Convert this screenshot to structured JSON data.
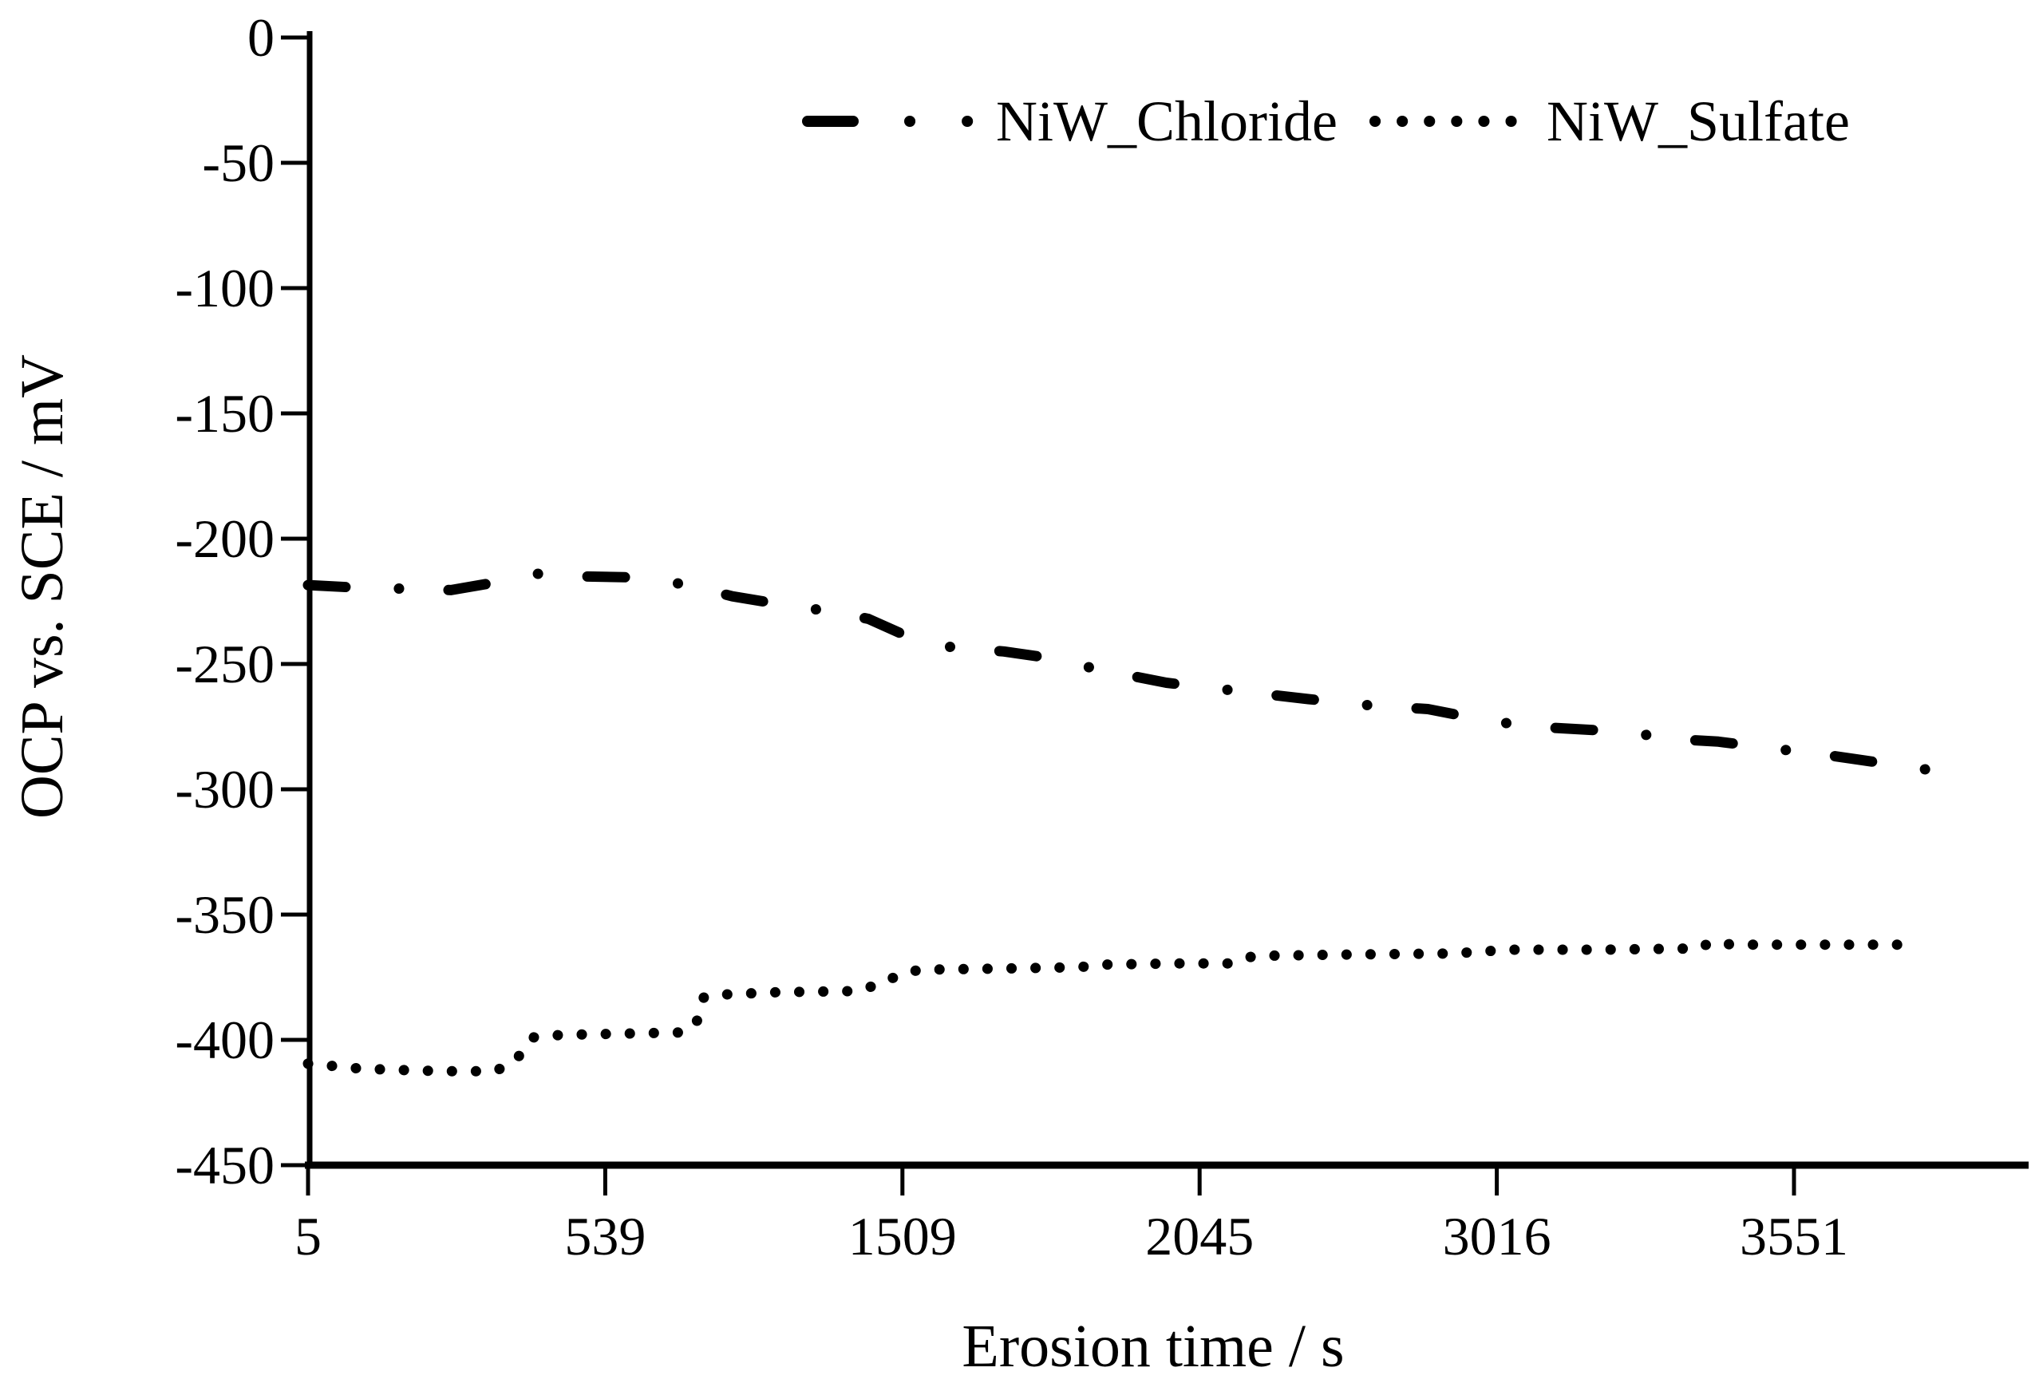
{
  "figure": {
    "background": "#ffffff",
    "ink": "#000000"
  },
  "chart_data": {
    "type": "line",
    "title": "",
    "xlabel": "Erosion time / s",
    "ylabel": "OCP vs. SCE / mV",
    "x_tick_labels": [
      "5",
      "539",
      "1509",
      "2045",
      "3016",
      "3551"
    ],
    "x_tick_values": [
      5,
      539,
      1509,
      2045,
      3016,
      3551
    ],
    "y_ticks": [
      0,
      -50,
      -100,
      -150,
      -200,
      -250,
      -300,
      -350,
      -400,
      -450
    ],
    "ylim": [
      -450,
      0
    ],
    "grid": false,
    "legend_position": "top-center",
    "series": [
      {
        "name": "NiW_Chloride",
        "style": "long-dash-dot",
        "color": "#000000",
        "points": [
          [
            5,
            -218.5
          ],
          [
            90,
            -219.5
          ],
          [
            184,
            -220
          ],
          [
            262,
            -220.5
          ],
          [
            340,
            -217.5
          ],
          [
            418,
            -214
          ],
          [
            489,
            -215
          ],
          [
            663,
            -215.5
          ],
          [
            808,
            -218.5
          ],
          [
            954,
            -223
          ],
          [
            1128,
            -226.5
          ],
          [
            1274,
            -229
          ],
          [
            1398,
            -232
          ],
          [
            1549,
            -242
          ],
          [
            1608,
            -243.5
          ],
          [
            1692,
            -245
          ],
          [
            1786,
            -248
          ],
          [
            1858,
            -252
          ],
          [
            1985,
            -257.5
          ],
          [
            2184,
            -261
          ],
          [
            2400,
            -264
          ],
          [
            2600,
            -266.5
          ],
          [
            2791,
            -268
          ],
          [
            2959,
            -272
          ],
          [
            3077,
            -275
          ],
          [
            3245,
            -277
          ],
          [
            3338,
            -280
          ],
          [
            3415,
            -281
          ],
          [
            3524,
            -284
          ],
          [
            3600,
            -286
          ],
          [
            3662,
            -288
          ],
          [
            3786,
            -292
          ],
          [
            3862,
            -294
          ]
        ]
      },
      {
        "name": "NiW_Sulfate",
        "style": "dotted",
        "color": "#000000",
        "points": [
          [
            5,
            -409.5
          ],
          [
            100,
            -411.5
          ],
          [
            170,
            -412
          ],
          [
            250,
            -412.5
          ],
          [
            340,
            -412.5
          ],
          [
            375,
            -409
          ],
          [
            410,
            -399
          ],
          [
            460,
            -398
          ],
          [
            600,
            -397.5
          ],
          [
            798,
            -397
          ],
          [
            837,
            -393
          ],
          [
            861,
            -383
          ],
          [
            904,
            -382
          ],
          [
            1100,
            -381
          ],
          [
            1360,
            -380.5
          ],
          [
            1453,
            -377
          ],
          [
            1496,
            -374
          ],
          [
            1540,
            -372
          ],
          [
            1700,
            -371.5
          ],
          [
            1830,
            -371
          ],
          [
            1862,
            -370
          ],
          [
            2000,
            -369.5
          ],
          [
            2140,
            -369.5
          ],
          [
            2223,
            -366.5
          ],
          [
            2500,
            -366
          ],
          [
            2874,
            -365.5
          ],
          [
            3038,
            -364
          ],
          [
            3200,
            -364
          ],
          [
            3381,
            -363.5
          ],
          [
            3401,
            -361
          ],
          [
            3441,
            -362
          ],
          [
            3600,
            -362
          ],
          [
            3764,
            -362
          ]
        ]
      }
    ]
  }
}
